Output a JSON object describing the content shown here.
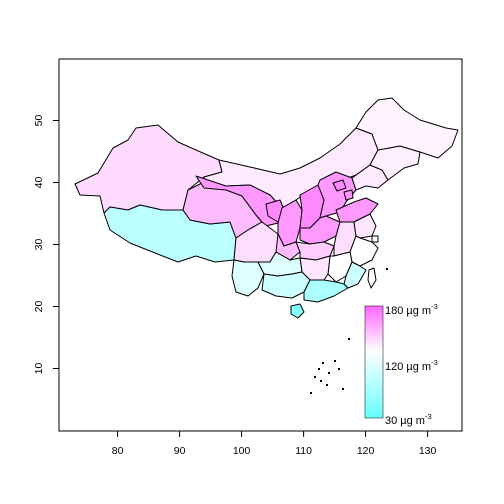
{
  "axes": {
    "x_ticks": [
      "80",
      "90",
      "100",
      "110",
      "120",
      "130"
    ],
    "y_ticks": [
      "10",
      "20",
      "30",
      "40",
      "50"
    ],
    "xlim": [
      70,
      137
    ],
    "ylim": [
      0,
      60
    ]
  },
  "legend": {
    "low_value": "30 µg m",
    "mid_value": "120 µg m",
    "high_value": "180 µg m",
    "exponent": "-3",
    "scale": [
      30,
      180
    ],
    "colors": {
      "low": "#66ffff",
      "mid": "#ffffff",
      "high": "#ff66ff"
    }
  },
  "map_colors": {
    "p_xj": "#ffdcff",
    "p_xz": "#bbffff",
    "p_qh": "#ffbbff",
    "p_nm": "#ffeaff",
    "p_gs": "#ff99ff",
    "p_nx": "#ff88ff",
    "p_sn": "#ff99ff",
    "p_sx": "#ff88ff",
    "p_hb": "#ff99ff",
    "p_bj": "#ff88ff",
    "p_tj": "#ff99ff",
    "p_sd": "#ff99ff",
    "p_hn": "#ff99ff",
    "p_sc": "#ffddff",
    "p_cq": "#ffbbff",
    "p_hbe": "#ffccff",
    "p_ah": "#ffddff",
    "p_js": "#ffe6ff",
    "p_zj": "#ffffff",
    "p_sh": "#ffffff",
    "p_yn": "#ddffff",
    "p_gz": "#ddffff",
    "p_gx": "#ccffff",
    "p_gd": "#aaffff",
    "p_hi": "#88ffff",
    "p_fj": "#ccffff",
    "p_jx": "#ffffff",
    "p_hun": "#ffe6ff",
    "p_ln": "#ffeaff",
    "p_jl": "#fff0ff",
    "p_hlj": "#fff4ff",
    "p_tw": "#ffffff"
  }
}
